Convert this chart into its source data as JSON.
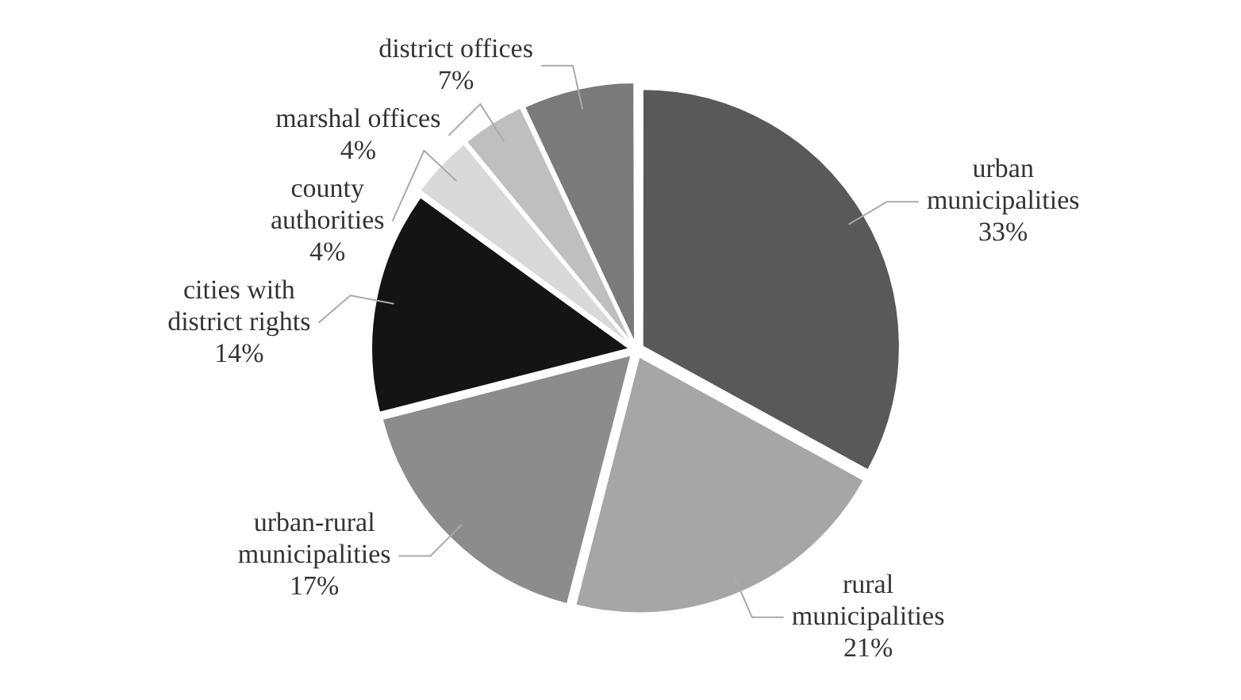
{
  "chart_data": {
    "type": "pie",
    "categories": [
      "urban municipalities",
      "rural municipalities",
      "urban-rural municipalities",
      "cities with district rights",
      "county authorities",
      "marshal offices",
      "district offices"
    ],
    "values": [
      33,
      21,
      17,
      14,
      4,
      4,
      7
    ],
    "colors": [
      "#595959",
      "#a6a6a6",
      "#8c8c8c",
      "#141414",
      "#d9d9d9",
      "#bfbfbf",
      "#7a7a7a"
    ],
    "value_labels": [
      "33%",
      "21%",
      "17%",
      "14%",
      "4%",
      "4%",
      "7%"
    ],
    "legend": false
  }
}
